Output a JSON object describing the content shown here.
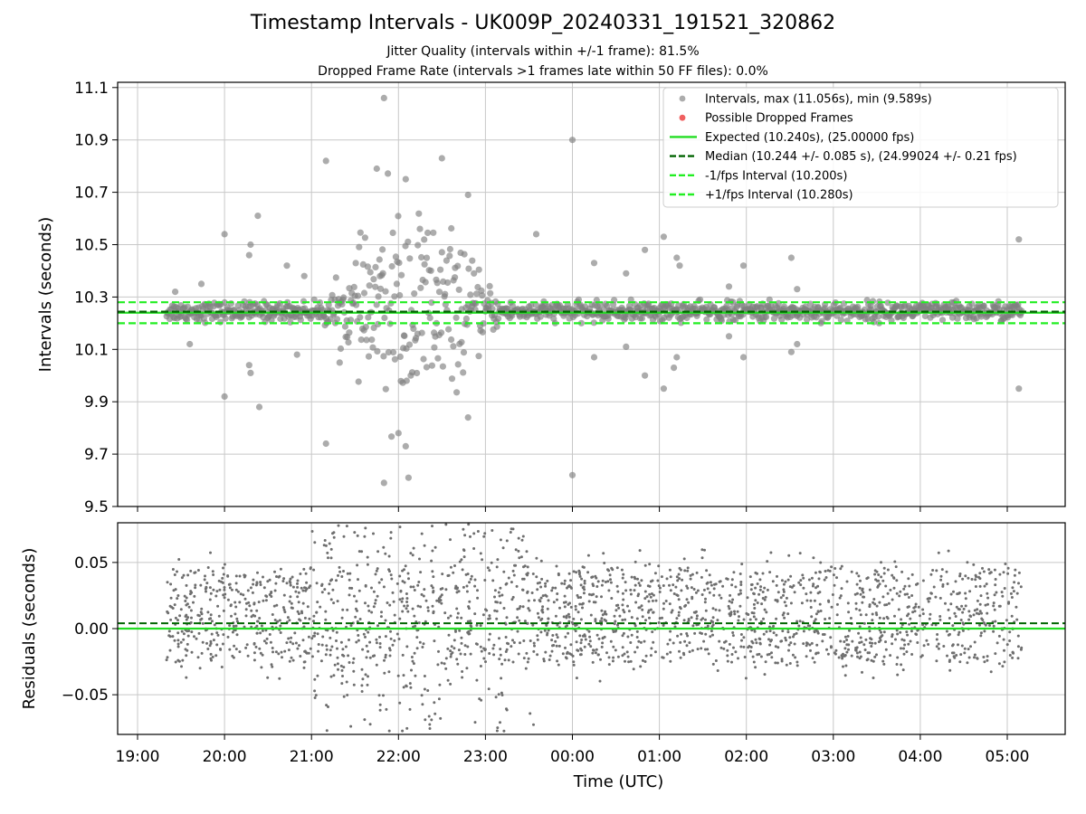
{
  "figure": {
    "title": "Timestamp Intervals - UK009P_20240331_191521_320862",
    "subtitle1": "Jitter Quality (intervals within +/-1 frame): 81.5%",
    "subtitle2": "Dropped Frame Rate (intervals >1 frames late within 50 FF files): 0.0%"
  },
  "chart_data": [
    {
      "type": "scatter",
      "ylabel": "Intervals (seconds)",
      "ylim": [
        9.5,
        11.12
      ],
      "yticks": [
        "9.5",
        "9.7",
        "9.9",
        "10.1",
        "10.3",
        "10.5",
        "10.7",
        "10.9",
        "11.1"
      ],
      "grid": true,
      "legend_position": "top-right",
      "legend": [
        "Intervals, max (11.056s), min (9.589s)",
        "Possible Dropped Frames",
        "Expected (10.240s), (25.00000 fps)",
        "Median (10.244 +/- 0.085 s), (24.99024 +/- 0.21 fps)",
        "-1/fps Interval (10.200s)",
        "+1/fps Interval (10.280s)"
      ],
      "reference_lines": {
        "expected": 10.24,
        "median": 10.244,
        "minus_1_fps": 10.2,
        "plus_1_fps": 10.28
      },
      "stats": {
        "max": 11.056,
        "min": 9.589,
        "jitter_quality_pct": 81.5,
        "dropped_frame_rate_pct": 0.0
      },
      "x_range": [
        "19:20",
        "05:10"
      ],
      "outliers": [
        {
          "x": "19:26",
          "y": 10.32
        },
        {
          "x": "19:36",
          "y": 10.12
        },
        {
          "x": "19:44",
          "y": 10.35
        },
        {
          "x": "20:00",
          "y": 10.54
        },
        {
          "x": "20:00",
          "y": 9.92
        },
        {
          "x": "20:17",
          "y": 10.46
        },
        {
          "x": "20:18",
          "y": 10.5
        },
        {
          "x": "20:17",
          "y": 10.04
        },
        {
          "x": "20:18",
          "y": 10.01
        },
        {
          "x": "20:23",
          "y": 10.61
        },
        {
          "x": "20:24",
          "y": 9.88
        },
        {
          "x": "20:43",
          "y": 10.42
        },
        {
          "x": "20:50",
          "y": 10.08
        },
        {
          "x": "20:55",
          "y": 10.38
        },
        {
          "x": "21:10",
          "y": 10.82
        },
        {
          "x": "21:10",
          "y": 9.74
        },
        {
          "x": "21:45",
          "y": 10.79
        },
        {
          "x": "21:50",
          "y": 9.59
        },
        {
          "x": "21:50",
          "y": 11.06
        },
        {
          "x": "22:00",
          "y": 9.78
        },
        {
          "x": "22:05",
          "y": 10.75
        },
        {
          "x": "22:05",
          "y": 9.73
        },
        {
          "x": "22:30",
          "y": 10.83
        },
        {
          "x": "22:48",
          "y": 10.69
        },
        {
          "x": "22:48",
          "y": 9.84
        },
        {
          "x": "23:35",
          "y": 10.54
        },
        {
          "x": "00:00",
          "y": 10.9
        },
        {
          "x": "00:00",
          "y": 9.62
        },
        {
          "x": "00:15",
          "y": 10.43
        },
        {
          "x": "00:15",
          "y": 10.07
        },
        {
          "x": "00:37",
          "y": 10.39
        },
        {
          "x": "00:37",
          "y": 10.11
        },
        {
          "x": "00:50",
          "y": 10.48
        },
        {
          "x": "00:50",
          "y": 10.0
        },
        {
          "x": "01:03",
          "y": 10.53
        },
        {
          "x": "01:03",
          "y": 9.95
        },
        {
          "x": "01:12",
          "y": 10.45
        },
        {
          "x": "01:14",
          "y": 10.42
        },
        {
          "x": "01:12",
          "y": 10.07
        },
        {
          "x": "01:10",
          "y": 10.03
        },
        {
          "x": "01:48",
          "y": 10.34
        },
        {
          "x": "01:48",
          "y": 10.15
        },
        {
          "x": "01:58",
          "y": 10.42
        },
        {
          "x": "01:58",
          "y": 10.07
        },
        {
          "x": "02:31",
          "y": 10.45
        },
        {
          "x": "02:31",
          "y": 10.09
        },
        {
          "x": "02:35",
          "y": 10.33
        },
        {
          "x": "02:35",
          "y": 10.12
        },
        {
          "x": "05:08",
          "y": 10.52
        },
        {
          "x": "05:08",
          "y": 9.95
        }
      ]
    },
    {
      "type": "scatter",
      "ylabel": "Residuals (seconds)",
      "xlabel": "Time (UTC)",
      "ylim": [
        -0.08,
        0.08
      ],
      "yticks": [
        "−0.05",
        "0.00",
        "0.05"
      ],
      "xticks": [
        "19:00",
        "20:00",
        "21:00",
        "22:00",
        "23:00",
        "00:00",
        "01:00",
        "02:00",
        "03:00",
        "04:00",
        "05:00"
      ],
      "grid": true,
      "reference_lines": {
        "zero": 0.0,
        "median_offset": 0.004
      }
    }
  ],
  "colors": {
    "points": "#808080",
    "residual_points": "#6e6e6e",
    "dropped": "#f06060",
    "expected": "#22dd22",
    "median": "#006400",
    "fps_bounds": "#22ee22",
    "grid": "#c8c8c8"
  }
}
